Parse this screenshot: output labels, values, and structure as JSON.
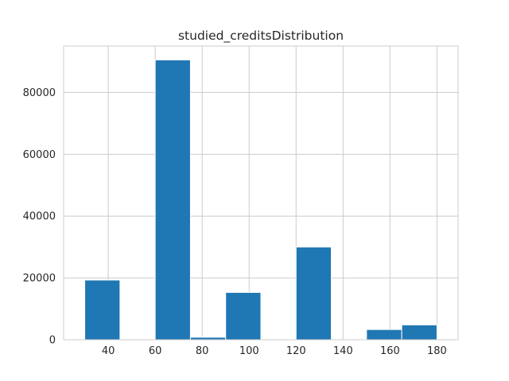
{
  "chart_data": {
    "type": "bar",
    "title": "studied_creditsDistribution",
    "xlabel": "",
    "ylabel": "",
    "bins": [
      {
        "start": 30,
        "end": 45,
        "value": 19300
      },
      {
        "start": 45,
        "end": 60,
        "value": 0
      },
      {
        "start": 60,
        "end": 75,
        "value": 90500
      },
      {
        "start": 75,
        "end": 90,
        "value": 800
      },
      {
        "start": 90,
        "end": 105,
        "value": 15300
      },
      {
        "start": 105,
        "end": 120,
        "value": 0
      },
      {
        "start": 120,
        "end": 135,
        "value": 30000
      },
      {
        "start": 135,
        "end": 150,
        "value": 0
      },
      {
        "start": 150,
        "end": 165,
        "value": 3300
      },
      {
        "start": 165,
        "end": 180,
        "value": 4800
      }
    ],
    "xlim": [
      21,
      189
    ],
    "ylim": [
      0,
      95000
    ],
    "xticks": [
      40,
      60,
      80,
      100,
      120,
      140,
      160,
      180
    ],
    "yticks": [
      0,
      20000,
      40000,
      60000,
      80000
    ],
    "grid": true,
    "colors": {
      "bar": "#1f77b4",
      "grid": "#cccccc",
      "text": "#262626"
    }
  }
}
